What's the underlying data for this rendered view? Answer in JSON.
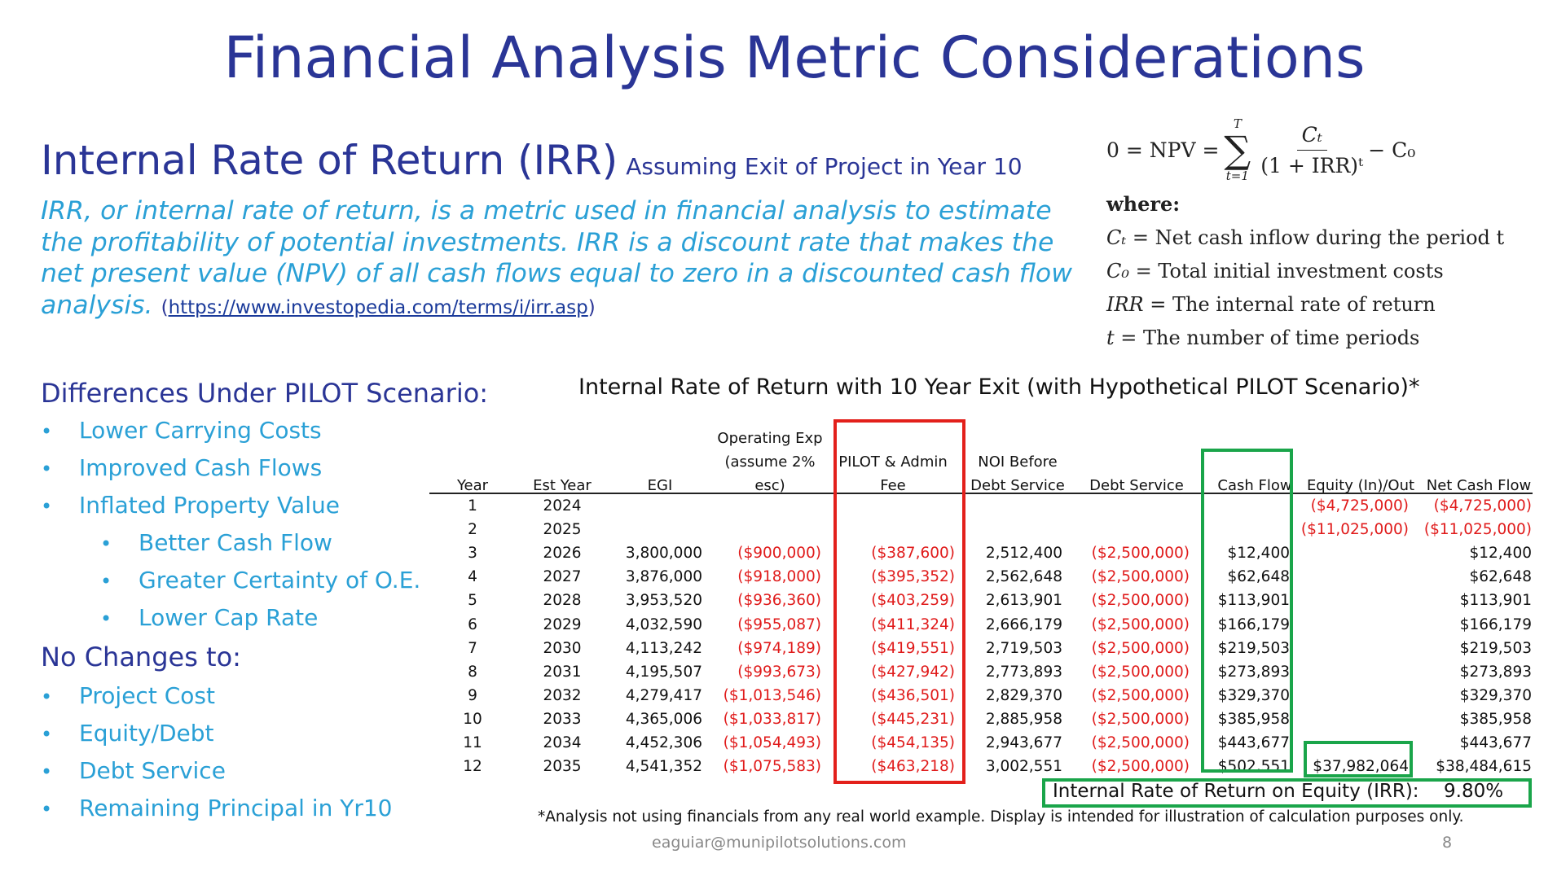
{
  "title": "Financial Analysis Metric Considerations",
  "irr_section": {
    "heading": "Internal Rate of Return (IRR)",
    "subheading": "Assuming Exit of Project in Year 10",
    "definition": "IRR, or internal rate of return, is a metric used in financial analysis to estimate the profitability of potential investments. IRR is a discount rate that makes the net present value (NPV) of all cash flows equal to zero in a discounted cash flow analysis.",
    "link_open": "(",
    "link_text": "https://www.investopedia.com/terms/i/irr.asp",
    "link_close": ")"
  },
  "formula": {
    "lhs": "0 = NPV = ",
    "sum_upper": "T",
    "sum_symbol": "∑",
    "sum_lower": "t=1",
    "numerator": "Cₜ",
    "denominator": "(1 + IRR)ᵗ",
    "tail": "− C₀",
    "where_label": "where:",
    "definitions": [
      {
        "symbol": "Cₜ",
        "text": " = Net cash inflow during the period t"
      },
      {
        "symbol": "C₀",
        "text": " = Total initial investment costs"
      },
      {
        "symbol": "IRR",
        "text": " = The internal rate of return"
      },
      {
        "symbol": "t",
        "text": " = The number of time periods"
      }
    ]
  },
  "differences": {
    "title": "Differences Under PILOT Scenario:",
    "items": [
      "Lower Carrying Costs",
      "Improved Cash Flows",
      "Inflated Property Value",
      "Better Cash Flow",
      "Greater Certainty of O.E.",
      "Lower Cap Rate"
    ]
  },
  "no_changes": {
    "title": "No Changes to:",
    "items": [
      "Project Cost",
      "Equity/Debt",
      "Debt Service",
      "Remaining Principal in Yr10"
    ]
  },
  "bullet_char": "•",
  "table": {
    "title": "Internal Rate of Return with 10 Year Exit (with Hypothetical PILOT Scenario)*",
    "headers": {
      "year": "Year",
      "est_year": "Est Year",
      "egi": "EGI",
      "opex": "Operating Exp (assume 2% esc)",
      "pilot": "PILOT & Admin Fee",
      "noi": "NOI Before Debt Service",
      "debt": "Debt Service",
      "cash_flow": "Cash Flow",
      "equity": "Equity (In)/Out",
      "net": "Net Cash Flow"
    },
    "rows": [
      {
        "year": "1",
        "est_year": "2024",
        "egi": "",
        "opex": "",
        "pilot": "",
        "noi": "",
        "debt": "",
        "cash_flow": "",
        "equity": "($4,725,000)",
        "net": "($4,725,000)"
      },
      {
        "year": "2",
        "est_year": "2025",
        "egi": "",
        "opex": "",
        "pilot": "",
        "noi": "",
        "debt": "",
        "cash_flow": "",
        "equity": "($11,025,000)",
        "net": "($11,025,000)"
      },
      {
        "year": "3",
        "est_year": "2026",
        "egi": "3,800,000",
        "opex": "($900,000)",
        "pilot": "($387,600)",
        "noi": "2,512,400",
        "debt": "($2,500,000)",
        "cash_flow": "$12,400",
        "equity": "",
        "net": "$12,400"
      },
      {
        "year": "4",
        "est_year": "2027",
        "egi": "3,876,000",
        "opex": "($918,000)",
        "pilot": "($395,352)",
        "noi": "2,562,648",
        "debt": "($2,500,000)",
        "cash_flow": "$62,648",
        "equity": "",
        "net": "$62,648"
      },
      {
        "year": "5",
        "est_year": "2028",
        "egi": "3,953,520",
        "opex": "($936,360)",
        "pilot": "($403,259)",
        "noi": "2,613,901",
        "debt": "($2,500,000)",
        "cash_flow": "$113,901",
        "equity": "",
        "net": "$113,901"
      },
      {
        "year": "6",
        "est_year": "2029",
        "egi": "4,032,590",
        "opex": "($955,087)",
        "pilot": "($411,324)",
        "noi": "2,666,179",
        "debt": "($2,500,000)",
        "cash_flow": "$166,179",
        "equity": "",
        "net": "$166,179"
      },
      {
        "year": "7",
        "est_year": "2030",
        "egi": "4,113,242",
        "opex": "($974,189)",
        "pilot": "($419,551)",
        "noi": "2,719,503",
        "debt": "($2,500,000)",
        "cash_flow": "$219,503",
        "equity": "",
        "net": "$219,503"
      },
      {
        "year": "8",
        "est_year": "2031",
        "egi": "4,195,507",
        "opex": "($993,673)",
        "pilot": "($427,942)",
        "noi": "2,773,893",
        "debt": "($2,500,000)",
        "cash_flow": "$273,893",
        "equity": "",
        "net": "$273,893"
      },
      {
        "year": "9",
        "est_year": "2032",
        "egi": "4,279,417",
        "opex": "($1,013,546)",
        "pilot": "($436,501)",
        "noi": "2,829,370",
        "debt": "($2,500,000)",
        "cash_flow": "$329,370",
        "equity": "",
        "net": "$329,370"
      },
      {
        "year": "10",
        "est_year": "2033",
        "egi": "4,365,006",
        "opex": "($1,033,817)",
        "pilot": "($445,231)",
        "noi": "2,885,958",
        "debt": "($2,500,000)",
        "cash_flow": "$385,958",
        "equity": "",
        "net": "$385,958"
      },
      {
        "year": "11",
        "est_year": "2034",
        "egi": "4,452,306",
        "opex": "($1,054,493)",
        "pilot": "($454,135)",
        "noi": "2,943,677",
        "debt": "($2,500,000)",
        "cash_flow": "$443,677",
        "equity": "",
        "net": "$443,677"
      },
      {
        "year": "12",
        "est_year": "2035",
        "egi": "4,541,352",
        "opex": "($1,075,583)",
        "pilot": "($463,218)",
        "noi": "3,002,551",
        "debt": "($2,500,000)",
        "cash_flow": "$502,551",
        "equity": "$37,982,064",
        "net": "$38,484,615"
      }
    ],
    "irr_label": "Internal Rate of Return on Equity (IRR):",
    "irr_value": "9.80%",
    "negative_color": "#e01b1b",
    "highlight_red": "#e3201b",
    "highlight_green": "#1aa54a"
  },
  "footnote": "*Analysis not using financials from any real world example. Display is intended for illustration of calculation purposes only.",
  "email": "eaguiar@munipilotsolutions.com",
  "page_number": "8"
}
